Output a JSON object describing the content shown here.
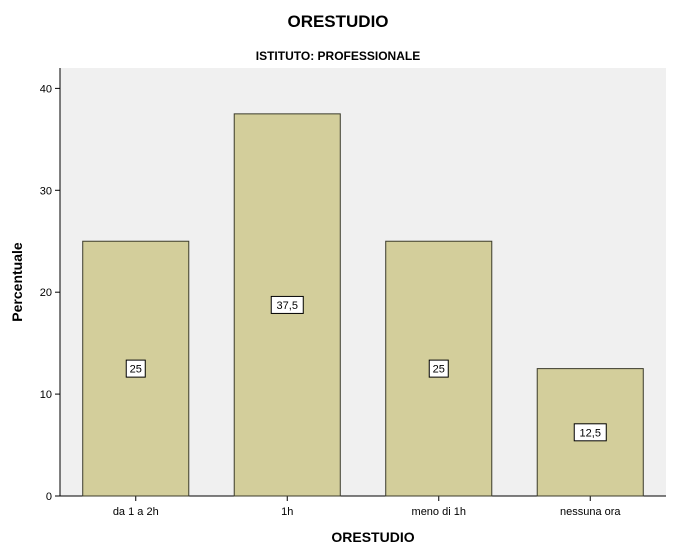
{
  "chart_data": {
    "type": "bar",
    "title": "ORESTUDIO",
    "subtitle": "ISTITUTO: PROFESSIONALE",
    "xlabel": "ORESTUDIO",
    "ylabel": "Percentuale",
    "categories": [
      "da 1 a 2h",
      "1h",
      "meno di 1h",
      "nessuna ora"
    ],
    "values": [
      25,
      37.5,
      25,
      12.5
    ],
    "data_labels": [
      "25",
      "37,5",
      "25",
      "12,5"
    ],
    "ylim": [
      0,
      42
    ],
    "yticks": [
      0,
      10,
      20,
      30,
      40
    ],
    "ytick_labels": [
      "0",
      "10",
      "20",
      "30",
      "40"
    ],
    "grid": false,
    "legend": "none",
    "colors": {
      "bar_fill": "#d3ce9b",
      "bar_stroke": "#3b3b2a",
      "plot_background": "#f0f0f0"
    }
  }
}
